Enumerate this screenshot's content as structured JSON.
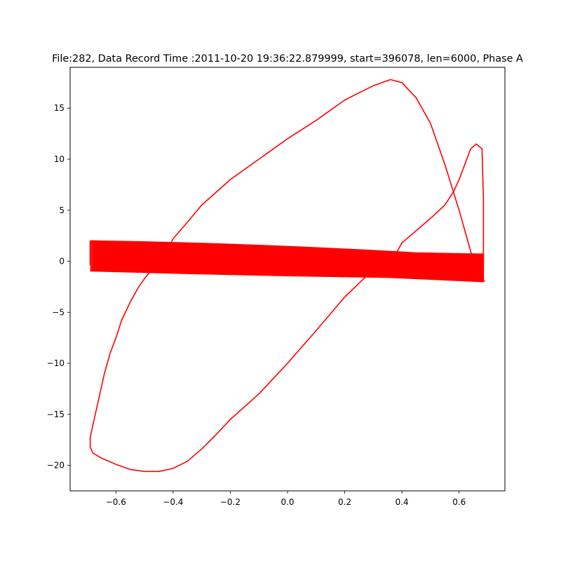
{
  "chart_data": {
    "type": "line",
    "title": "File:282, Data Record Time :2011-10-20 19:36:22.879999, start=396078, len=6000, Phase A",
    "xlabel": "",
    "ylabel": "",
    "xlim": [
      -0.76,
      0.76
    ],
    "ylim": [
      -22.5,
      19.0
    ],
    "x_ticks": [
      -0.6,
      -0.4,
      -0.2,
      0.0,
      0.2,
      0.4,
      0.6
    ],
    "x_tick_labels": [
      "−0.6",
      "−0.4",
      "−0.2",
      "0.0",
      "0.2",
      "0.4",
      "0.6"
    ],
    "y_ticks": [
      -20,
      -15,
      -10,
      -5,
      0,
      5,
      10,
      15
    ],
    "y_tick_labels": [
      "−20",
      "−15",
      "−10",
      "−5",
      "0",
      "5",
      "10",
      "15"
    ],
    "grid": false,
    "color": "#ff0000",
    "series": [
      {
        "x": [
          0.69,
          0.68,
          0.67,
          0.66,
          0.64,
          0.6,
          0.55,
          0.5,
          0.45,
          0.4,
          0.36,
          0.3,
          0.2,
          0.1,
          0.0,
          -0.1,
          -0.2,
          -0.3,
          -0.36,
          -0.4,
          -0.42,
          -0.44,
          -0.46,
          -0.48,
          -0.5,
          -0.52,
          -0.55,
          -0.58,
          -0.6,
          -0.62,
          -0.64,
          -0.66,
          -0.68,
          -0.69,
          -0.69,
          -0.68,
          -0.65,
          -0.6,
          -0.55,
          -0.5,
          -0.45,
          -0.4,
          -0.35,
          -0.3,
          -0.25,
          -0.2,
          -0.1,
          0.0,
          0.1,
          0.2,
          0.3,
          0.38,
          0.4,
          0.45,
          0.5,
          0.55,
          0.58,
          0.6,
          0.62,
          0.64,
          0.66,
          0.68,
          0.685,
          0.685,
          0.68,
          0.66,
          0.64,
          0.62,
          0.58,
          0.5,
          0.4,
          0.3,
          0.2,
          0.1,
          0.0,
          -0.2,
          -0.4,
          -0.5,
          -0.6,
          -0.69
        ],
        "y": [
          -2.0,
          -1.8,
          -1.5,
          -1.0,
          1.0,
          5.0,
          9.5,
          13.5,
          16.0,
          17.5,
          17.8,
          17.2,
          15.8,
          13.8,
          12.0,
          10.0,
          8.0,
          5.5,
          3.5,
          2.2,
          1.0,
          -0.2,
          -0.5,
          -1.0,
          -1.7,
          -2.5,
          -4.0,
          -5.8,
          -7.5,
          -9.0,
          -11.0,
          -13.5,
          -16.0,
          -17.3,
          -18.2,
          -18.8,
          -19.3,
          -19.9,
          -20.4,
          -20.6,
          -20.6,
          -20.3,
          -19.6,
          -18.4,
          -17.0,
          -15.5,
          -13.0,
          -10.0,
          -6.8,
          -3.5,
          -0.8,
          0.8,
          1.8,
          3.0,
          4.2,
          5.5,
          6.8,
          8.0,
          9.5,
          11.0,
          11.5,
          11.0,
          6.0,
          0.0,
          0.0,
          -0.5,
          -1.0,
          -1.2,
          -1.3,
          -1.1,
          -0.7,
          -0.3,
          0.0,
          0.4,
          0.8,
          1.0,
          1.2,
          1.5,
          1.8,
          2.0
        ]
      }
    ]
  }
}
